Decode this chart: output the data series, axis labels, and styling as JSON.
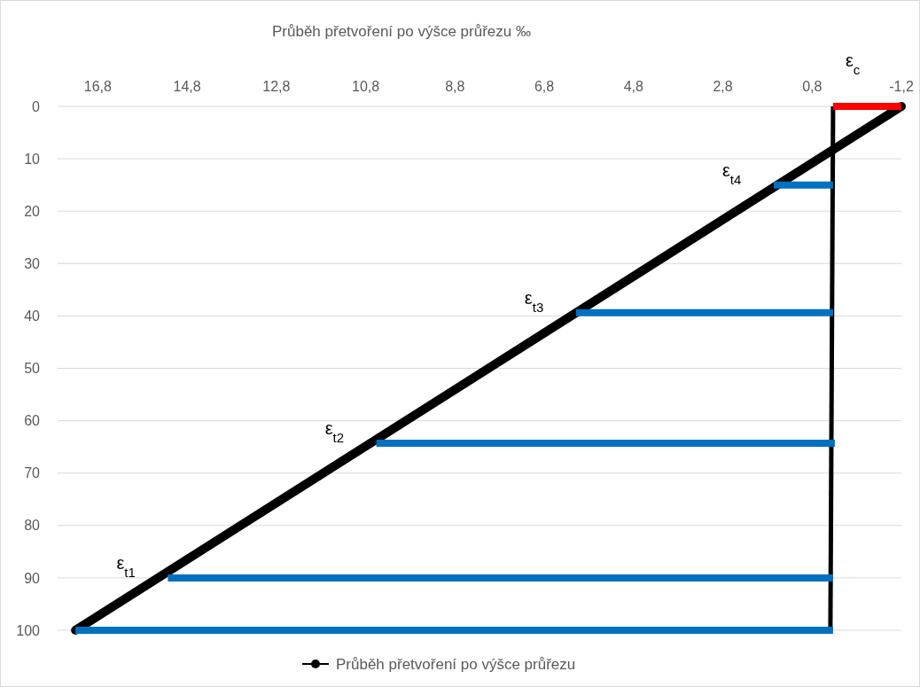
{
  "chart_data": {
    "type": "line",
    "title": "Průběh přetvoření po výšce průřezu ‰",
    "xlim": [
      17.7,
      -1.2
    ],
    "xticks": [
      {
        "value": 16.8,
        "label": "16,8"
      },
      {
        "value": 14.8,
        "label": "14,8"
      },
      {
        "value": 12.8,
        "label": "12,8"
      },
      {
        "value": 10.8,
        "label": "10,8"
      },
      {
        "value": 8.8,
        "label": "8,8"
      },
      {
        "value": 6.8,
        "label": "6,8"
      },
      {
        "value": 4.8,
        "label": "4,8"
      },
      {
        "value": 2.8,
        "label": "2,8"
      },
      {
        "value": 0.8,
        "label": "0,8"
      },
      {
        "value": -1.2,
        "label": "-1,2"
      }
    ],
    "ylim": [
      100,
      0
    ],
    "yticks": [
      0,
      10,
      20,
      30,
      40,
      50,
      60,
      70,
      80,
      90,
      100
    ],
    "grid": "y",
    "legend": "bottom",
    "series": [
      {
        "name": "Průběh přetvoření po výšce průřezu",
        "color": "#000000",
        "marker": "circle",
        "x": [
          -1.2,
          17.3
        ],
        "values": [
          0,
          100
        ]
      },
      {
        "color": "#000000",
        "marker": "none",
        "x": [
          0.33,
          0.39
        ],
        "values": [
          0,
          100
        ]
      },
      {
        "color": "#ff0000",
        "marker": "none",
        "x": [
          0.33,
          -1.2
        ],
        "values": [
          0,
          0
        ]
      },
      {
        "color": "#0070c0",
        "marker": "none",
        "x": [
          1.66,
          0.33
        ],
        "values": [
          15,
          15
        ]
      },
      {
        "color": "#0070c0",
        "marker": "none",
        "x": [
          6.09,
          0.33
        ],
        "values": [
          39.4,
          39.4
        ]
      },
      {
        "color": "#0070c0",
        "marker": "none",
        "x": [
          10.56,
          0.29
        ],
        "values": [
          64.3,
          64.3
        ]
      },
      {
        "color": "#0070c0",
        "marker": "none",
        "x": [
          15.23,
          0.33
        ],
        "values": [
          90,
          90
        ]
      },
      {
        "color": "#0070c0",
        "marker": "none",
        "x": [
          17.3,
          0.33
        ],
        "values": [
          100,
          100
        ]
      }
    ],
    "annotations": [
      "ε$_{c}$",
      {
        "text": "ε$_{t4}$",
        "x": 1.66,
        "y": 15
      },
      {
        "text": "ε$_{t3}$",
        "x": 6.09,
        "y": 39.4
      },
      {
        "text": "ε$_{t2}$",
        "x": 10.56,
        "y": 64.3
      },
      {
        "text": "ε$_{t1}$",
        "x": 15.23,
        "y": 90
      }
    ]
  }
}
